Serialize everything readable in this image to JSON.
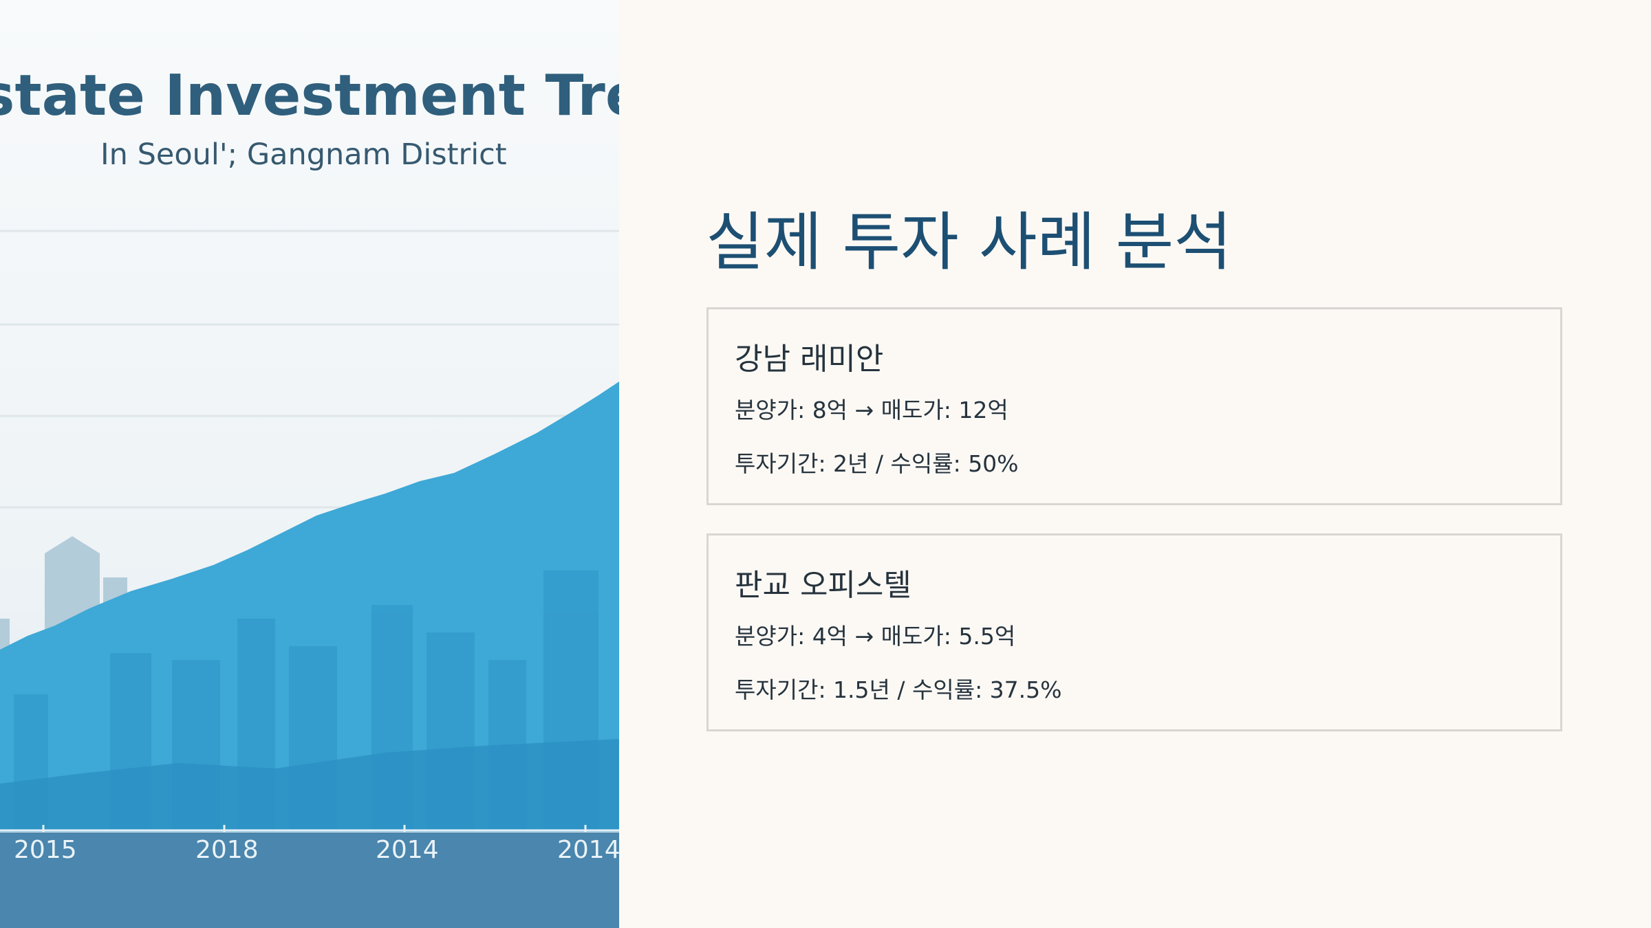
{
  "image_panel": {
    "title": "l Estate Investment Tre",
    "subtitle": "In Seoul'; Gangnam District",
    "x_tick_labels": [
      "2015",
      "2018",
      "2014",
      "2014"
    ],
    "colors": {
      "area_fill": "#3ea8d6",
      "bottom_band": "#4a86ad",
      "title": "#2f5f7c"
    }
  },
  "heading": "실제 투자 사례 분석",
  "cases": [
    {
      "name": "강남 래미안",
      "price_line": "분양가: 8억 → 매도가: 12억",
      "summary_line": "투자기간: 2년 / 수익률: 50%"
    },
    {
      "name": "판교 오피스텔",
      "price_line": "분양가: 4억 → 매도가: 5.5억",
      "summary_line": "투자기간: 1.5년 / 수익률: 37.5%"
    }
  ],
  "colors": {
    "background": "#fcf9f5",
    "heading": "#1d4f73",
    "card_border": "#d9d6d1",
    "text": "#26333d"
  }
}
